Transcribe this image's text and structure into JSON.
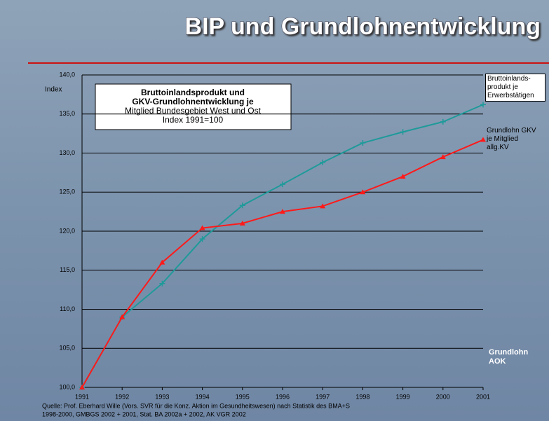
{
  "title": "BIP und Grundlohnentwicklung",
  "chart_data": {
    "type": "line",
    "y_label": "Index",
    "annotation": [
      "Bruttoinlandsprodukt und",
      "GKV-Grundlohnentwicklung je",
      "Mitglied Bundesgebiet West und Ost",
      "Index 1991=100"
    ],
    "categories": [
      "1991",
      "1992",
      "1993",
      "1994",
      "1995",
      "1996",
      "1997",
      "1998",
      "1999",
      "2000",
      "2001"
    ],
    "series": [
      {
        "name": "Bruttoinlands-produkt je Erwerbstätigen",
        "color": "#1f9a9a",
        "marker": "plus",
        "values": [
          100,
          109,
          113.3,
          119,
          123.3,
          126,
          128.8,
          131.3,
          132.7,
          134,
          136.2
        ]
      },
      {
        "name": "Grundlohn GKV je Mitglied allg.KV",
        "color": "#ff1a1a",
        "marker": "triangle",
        "values": [
          100,
          109,
          116,
          120.4,
          121,
          122.5,
          123.2,
          125,
          127,
          129.5,
          131.7
        ]
      }
    ],
    "ylim": [
      100,
      140
    ],
    "yticks": [
      {
        "value": 100,
        "label": "100,0"
      },
      {
        "value": 105,
        "label": "105,0"
      },
      {
        "value": 110,
        "label": "110,0"
      },
      {
        "value": 115,
        "label": "115,0"
      },
      {
        "value": 120,
        "label": "120,0"
      },
      {
        "value": 125,
        "label": "125,0"
      },
      {
        "value": 130,
        "label": "130,0"
      },
      {
        "value": 135,
        "label": "135,0"
      },
      {
        "value": 140,
        "label": "140,0"
      }
    ],
    "grid": true
  },
  "logo_text": "Grundlohn AOK",
  "source": [
    "Quelle: Prof. Eberhard Wille (Vors. SVR für die Konz. Aktion im Gesundheitswesen) nach Statistik des BMA+S",
    "1998-2000, GMBGS 2002 + 2001, Stat. BA 2002a + 2002, AK VGR 2002"
  ]
}
